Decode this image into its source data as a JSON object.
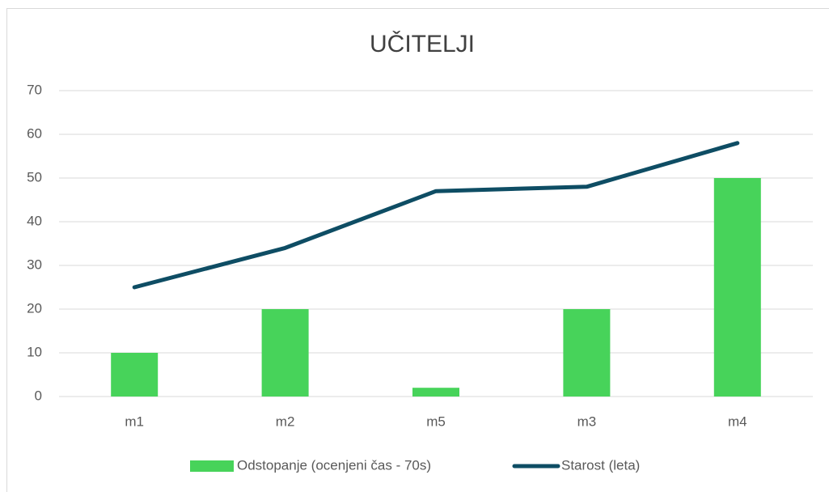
{
  "chart_data": {
    "type": "combo",
    "title": "UČITELJI",
    "categories": [
      "m1",
      "m2",
      "m5",
      "m3",
      "m4"
    ],
    "series": [
      {
        "name": "Odstopanje (ocenjeni čas - 70s)",
        "type": "bar",
        "color": "#47d35a",
        "values": [
          10,
          20,
          2,
          20,
          50
        ]
      },
      {
        "name": "Starost (leta)",
        "type": "line",
        "color": "#0e4d64",
        "values": [
          25,
          34,
          47,
          48,
          58
        ]
      }
    ],
    "ylim": [
      0,
      70
    ],
    "yticks": [
      0,
      10,
      20,
      30,
      40,
      50,
      60,
      70
    ],
    "grid": true,
    "legend": "bottom"
  }
}
